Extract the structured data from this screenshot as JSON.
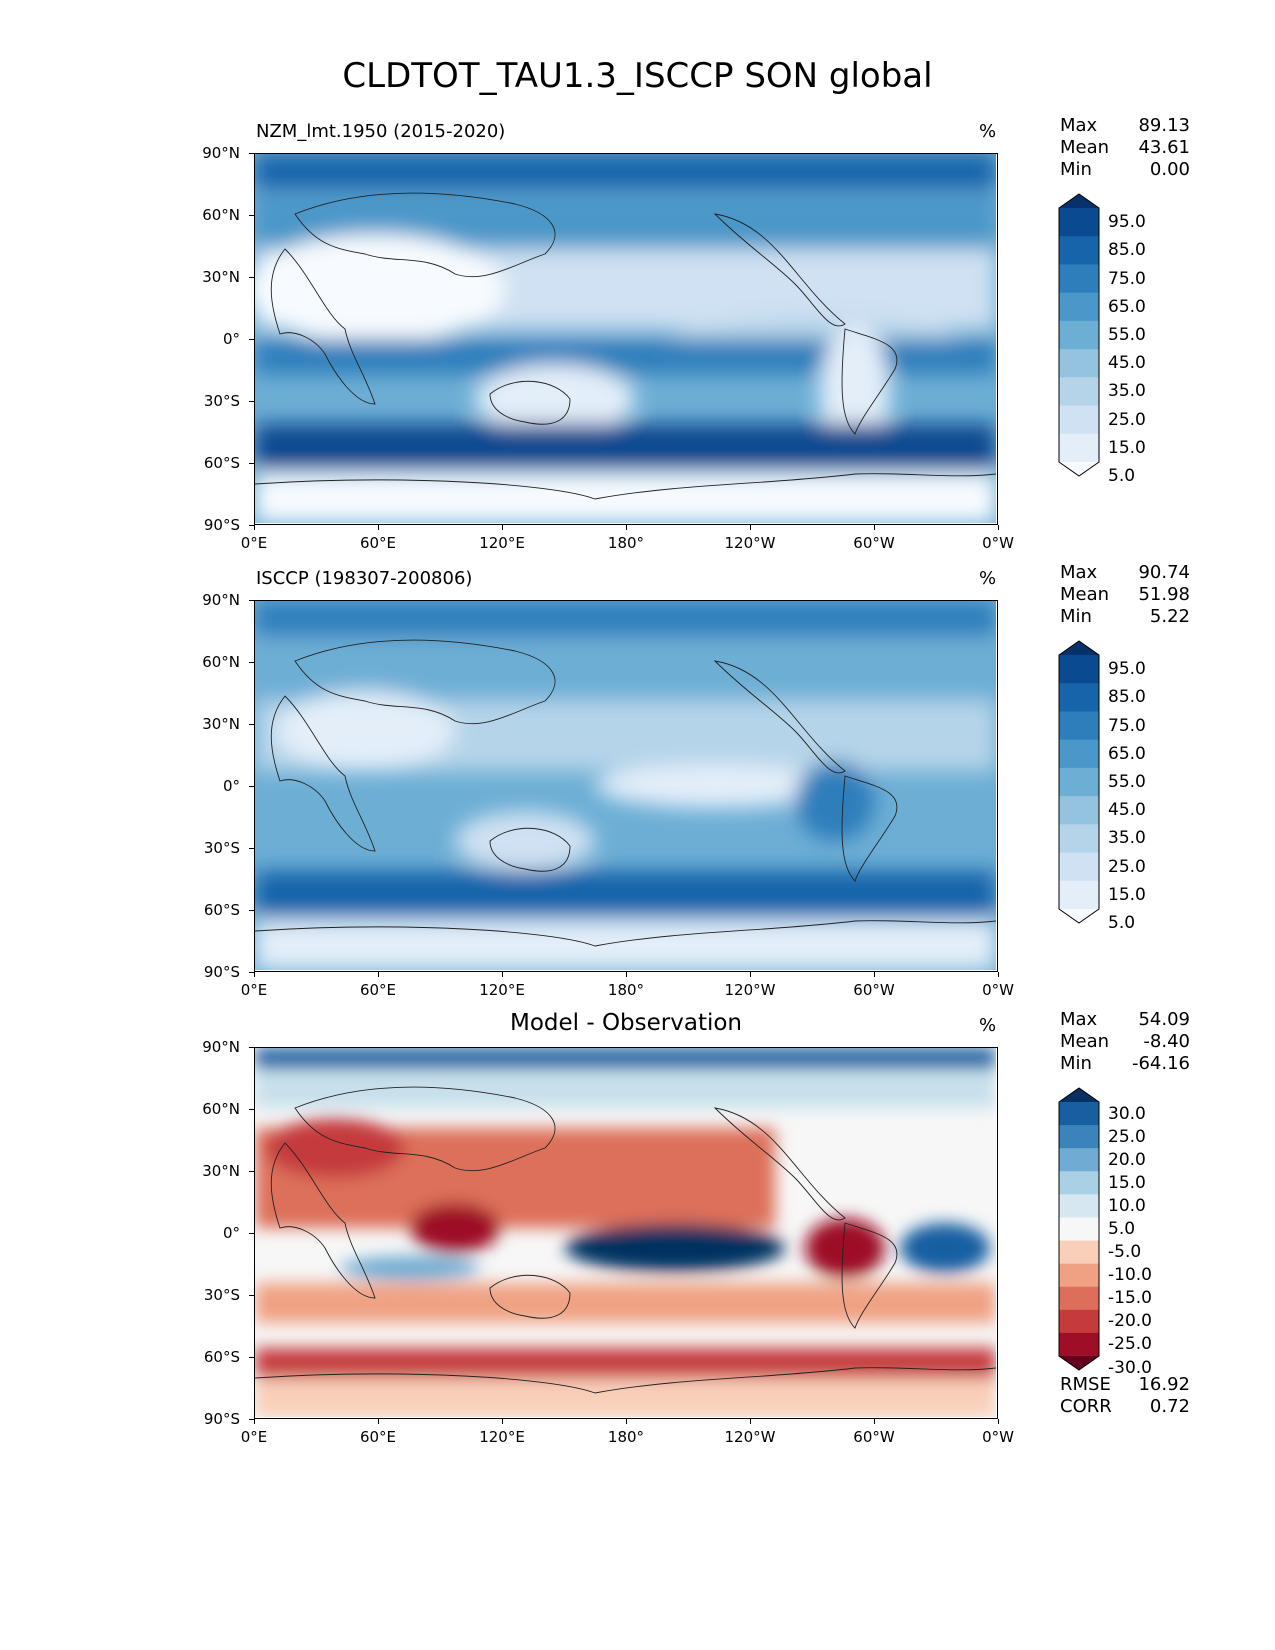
{
  "title": "CLDTOT_TAU1.3_ISCCP SON global",
  "axes": {
    "lat_labels": [
      "90°N",
      "60°N",
      "30°N",
      "0°",
      "30°S",
      "60°S",
      "90°S"
    ],
    "lon_labels": [
      "0°E",
      "60°E",
      "120°E",
      "180°",
      "120°W",
      "60°W",
      "0°W"
    ]
  },
  "panels": [
    {
      "title": "NZM_lmt.1950 (2015-2020)",
      "units": "%",
      "stats": [
        {
          "label": "Max",
          "value": "89.13"
        },
        {
          "label": "Mean",
          "value": "43.61"
        },
        {
          "label": "Min",
          "value": "0.00"
        }
      ],
      "colorbar_labels": [
        "95.0",
        "85.0",
        "75.0",
        "65.0",
        "55.0",
        "45.0",
        "35.0",
        "25.0",
        "15.0",
        "5.0"
      ]
    },
    {
      "title": "ISCCP (198307-200806)",
      "units": "%",
      "stats": [
        {
          "label": "Max",
          "value": "90.74"
        },
        {
          "label": "Mean",
          "value": "51.98"
        },
        {
          "label": "Min",
          "value": "5.22"
        }
      ],
      "colorbar_labels": [
        "95.0",
        "85.0",
        "75.0",
        "65.0",
        "55.0",
        "45.0",
        "35.0",
        "25.0",
        "15.0",
        "5.0"
      ]
    },
    {
      "title": "Model - Observation",
      "units": "%",
      "stats": [
        {
          "label": "Max",
          "value": "54.09"
        },
        {
          "label": "Mean",
          "value": "-8.40"
        },
        {
          "label": "Min",
          "value": "-64.16"
        }
      ],
      "colorbar_labels": [
        "30.0",
        "25.0",
        "20.0",
        "15.0",
        "10.0",
        "5.0",
        "-5.0",
        "-10.0",
        "-15.0",
        "-20.0",
        "-25.0",
        "-30.0"
      ],
      "footer_stats": [
        {
          "label": "RMSE",
          "value": "16.92"
        },
        {
          "label": "CORR",
          "value": "0.72"
        }
      ]
    }
  ],
  "colors": {
    "blues": [
      "#f7fbff",
      "#e3eef9",
      "#cfe1f2",
      "#b5d4e9",
      "#93c3df",
      "#6daed5",
      "#4b97c9",
      "#2f7ebc",
      "#1864aa",
      "#0a4a90",
      "#08306b"
    ],
    "diverging": [
      "#67001f",
      "#9e0f27",
      "#c53b3c",
      "#dd6f5a",
      "#f0a183",
      "#f9cfb9",
      "#f7f7f7",
      "#d6e7f1",
      "#a9d0e5",
      "#6fabd2",
      "#3a84bb",
      "#185fa1",
      "#053061"
    ]
  },
  "chart_data": [
    {
      "type": "heatmap",
      "title": "NZM_lmt.1950 (2015-2020)",
      "units": "%",
      "xlim": [
        0,
        360
      ],
      "ylim": [
        -90,
        90
      ],
      "levels": [
        5,
        15,
        25,
        35,
        45,
        55,
        65,
        75,
        85,
        95
      ],
      "zonal_mean_profile": [
        [
          90,
          60
        ],
        [
          75,
          80
        ],
        [
          60,
          70
        ],
        [
          45,
          45
        ],
        [
          30,
          25
        ],
        [
          15,
          40
        ],
        [
          0,
          55
        ],
        [
          -15,
          45
        ],
        [
          -30,
          35
        ],
        [
          -45,
          65
        ],
        [
          -55,
          85
        ],
        [
          -65,
          55
        ],
        [
          -75,
          15
        ],
        [
          -90,
          5
        ]
      ]
    },
    {
      "type": "heatmap",
      "title": "ISCCP (198307-200806)",
      "units": "%",
      "xlim": [
        0,
        360
      ],
      "ylim": [
        -90,
        90
      ],
      "levels": [
        5,
        15,
        25,
        35,
        45,
        55,
        65,
        75,
        85,
        95
      ],
      "zonal_mean_profile": [
        [
          90,
          55
        ],
        [
          75,
          75
        ],
        [
          60,
          65
        ],
        [
          45,
          55
        ],
        [
          30,
          40
        ],
        [
          15,
          55
        ],
        [
          0,
          65
        ],
        [
          -15,
          55
        ],
        [
          -30,
          55
        ],
        [
          -45,
          70
        ],
        [
          -55,
          85
        ],
        [
          -65,
          60
        ],
        [
          -75,
          25
        ],
        [
          -90,
          15
        ]
      ]
    },
    {
      "type": "heatmap",
      "title": "Model - Observation",
      "units": "%",
      "xlim": [
        0,
        360
      ],
      "ylim": [
        -90,
        90
      ],
      "levels": [
        -30,
        -25,
        -20,
        -15,
        -10,
        -5,
        5,
        10,
        15,
        20,
        25,
        30
      ],
      "zonal_mean_profile": [
        [
          90,
          15
        ],
        [
          75,
          5
        ],
        [
          60,
          -5
        ],
        [
          45,
          -15
        ],
        [
          30,
          -15
        ],
        [
          15,
          -15
        ],
        [
          0,
          -10
        ],
        [
          -15,
          -5
        ],
        [
          -30,
          -15
        ],
        [
          -45,
          -5
        ],
        [
          -60,
          -25
        ],
        [
          -75,
          -10
        ],
        [
          -90,
          -10
        ]
      ]
    }
  ]
}
